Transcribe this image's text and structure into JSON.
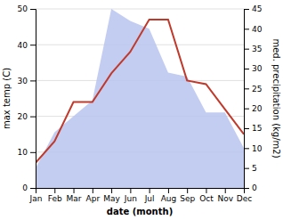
{
  "chart_data": {
    "type": "line",
    "categories": [
      "Jan",
      "Feb",
      "Mar",
      "Apr",
      "May",
      "Jun",
      "Jul",
      "Aug",
      "Sep",
      "Oct",
      "Nov",
      "Dec"
    ],
    "series": [
      {
        "type": "area",
        "axis": "y2",
        "color": "#b8c4ee",
        "values": [
          5,
          14,
          18,
          22,
          45,
          42,
          40,
          29,
          28,
          19,
          19,
          10
        ]
      },
      {
        "type": "line",
        "color": "#c0392b",
        "values": [
          7,
          13,
          24,
          24,
          32,
          38,
          47,
          47,
          30,
          29,
          22,
          15
        ]
      }
    ],
    "xlabel": "date (month)",
    "ylabel": "max temp (C)",
    "y2label": "med. precipitation (kg/m2)",
    "ylim": [
      0,
      50
    ],
    "yticks": [
      0,
      10,
      20,
      30,
      40,
      50
    ],
    "y2lim": [
      0,
      45
    ],
    "y2ticks": [
      0,
      5,
      10,
      15,
      20,
      25,
      30,
      35,
      40,
      45
    ],
    "grid": true
  }
}
